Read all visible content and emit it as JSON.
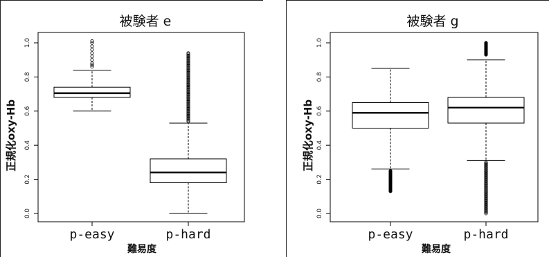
{
  "chart_data": [
    {
      "type": "box",
      "title": "被験者 e",
      "xlabel": "難易度",
      "ylabel": "正規化oxy-Hb",
      "categories": [
        "p-easy",
        "p-hard"
      ],
      "ylim": [
        0.0,
        1.0
      ],
      "yticks": [
        "0.0",
        "0.2",
        "0.4",
        "0.6",
        "0.8",
        "1.0"
      ],
      "grid": false,
      "boxes": [
        {
          "name": "p-easy",
          "whisker_low": 0.6,
          "q1": 0.68,
          "median": 0.705,
          "q3": 0.74,
          "whisker_high": 0.84,
          "outliers_high": [
            0.86,
            0.87,
            0.88,
            0.9,
            0.92,
            0.94,
            0.96,
            0.98,
            1.0,
            1.01
          ]
        },
        {
          "name": "p-hard",
          "whisker_low": 0.0,
          "q1": 0.18,
          "median": 0.24,
          "q3": 0.32,
          "whisker_high": 0.53,
          "outliers_high_range": [
            0.54,
            0.94
          ]
        }
      ]
    },
    {
      "type": "box",
      "title": "被験者 g",
      "xlabel": "難易度",
      "ylabel": "正規化oxy-Hb",
      "categories": [
        "p-easy",
        "p-hard"
      ],
      "ylim": [
        0.0,
        1.0
      ],
      "yticks": [
        "0.0",
        "0.2",
        "0.4",
        "0.6",
        "0.8",
        "1.0"
      ],
      "grid": false,
      "boxes": [
        {
          "name": "p-easy",
          "whisker_low": 0.26,
          "q1": 0.5,
          "median": 0.59,
          "q3": 0.65,
          "whisker_high": 0.85,
          "outliers_low_range": [
            0.13,
            0.25
          ]
        },
        {
          "name": "p-hard",
          "whisker_low": 0.31,
          "q1": 0.53,
          "median": 0.62,
          "q3": 0.68,
          "whisker_high": 0.9,
          "outliers_low_range": [
            0.0,
            0.3
          ],
          "outliers_high_range": [
            0.93,
            1.0
          ]
        }
      ]
    }
  ]
}
